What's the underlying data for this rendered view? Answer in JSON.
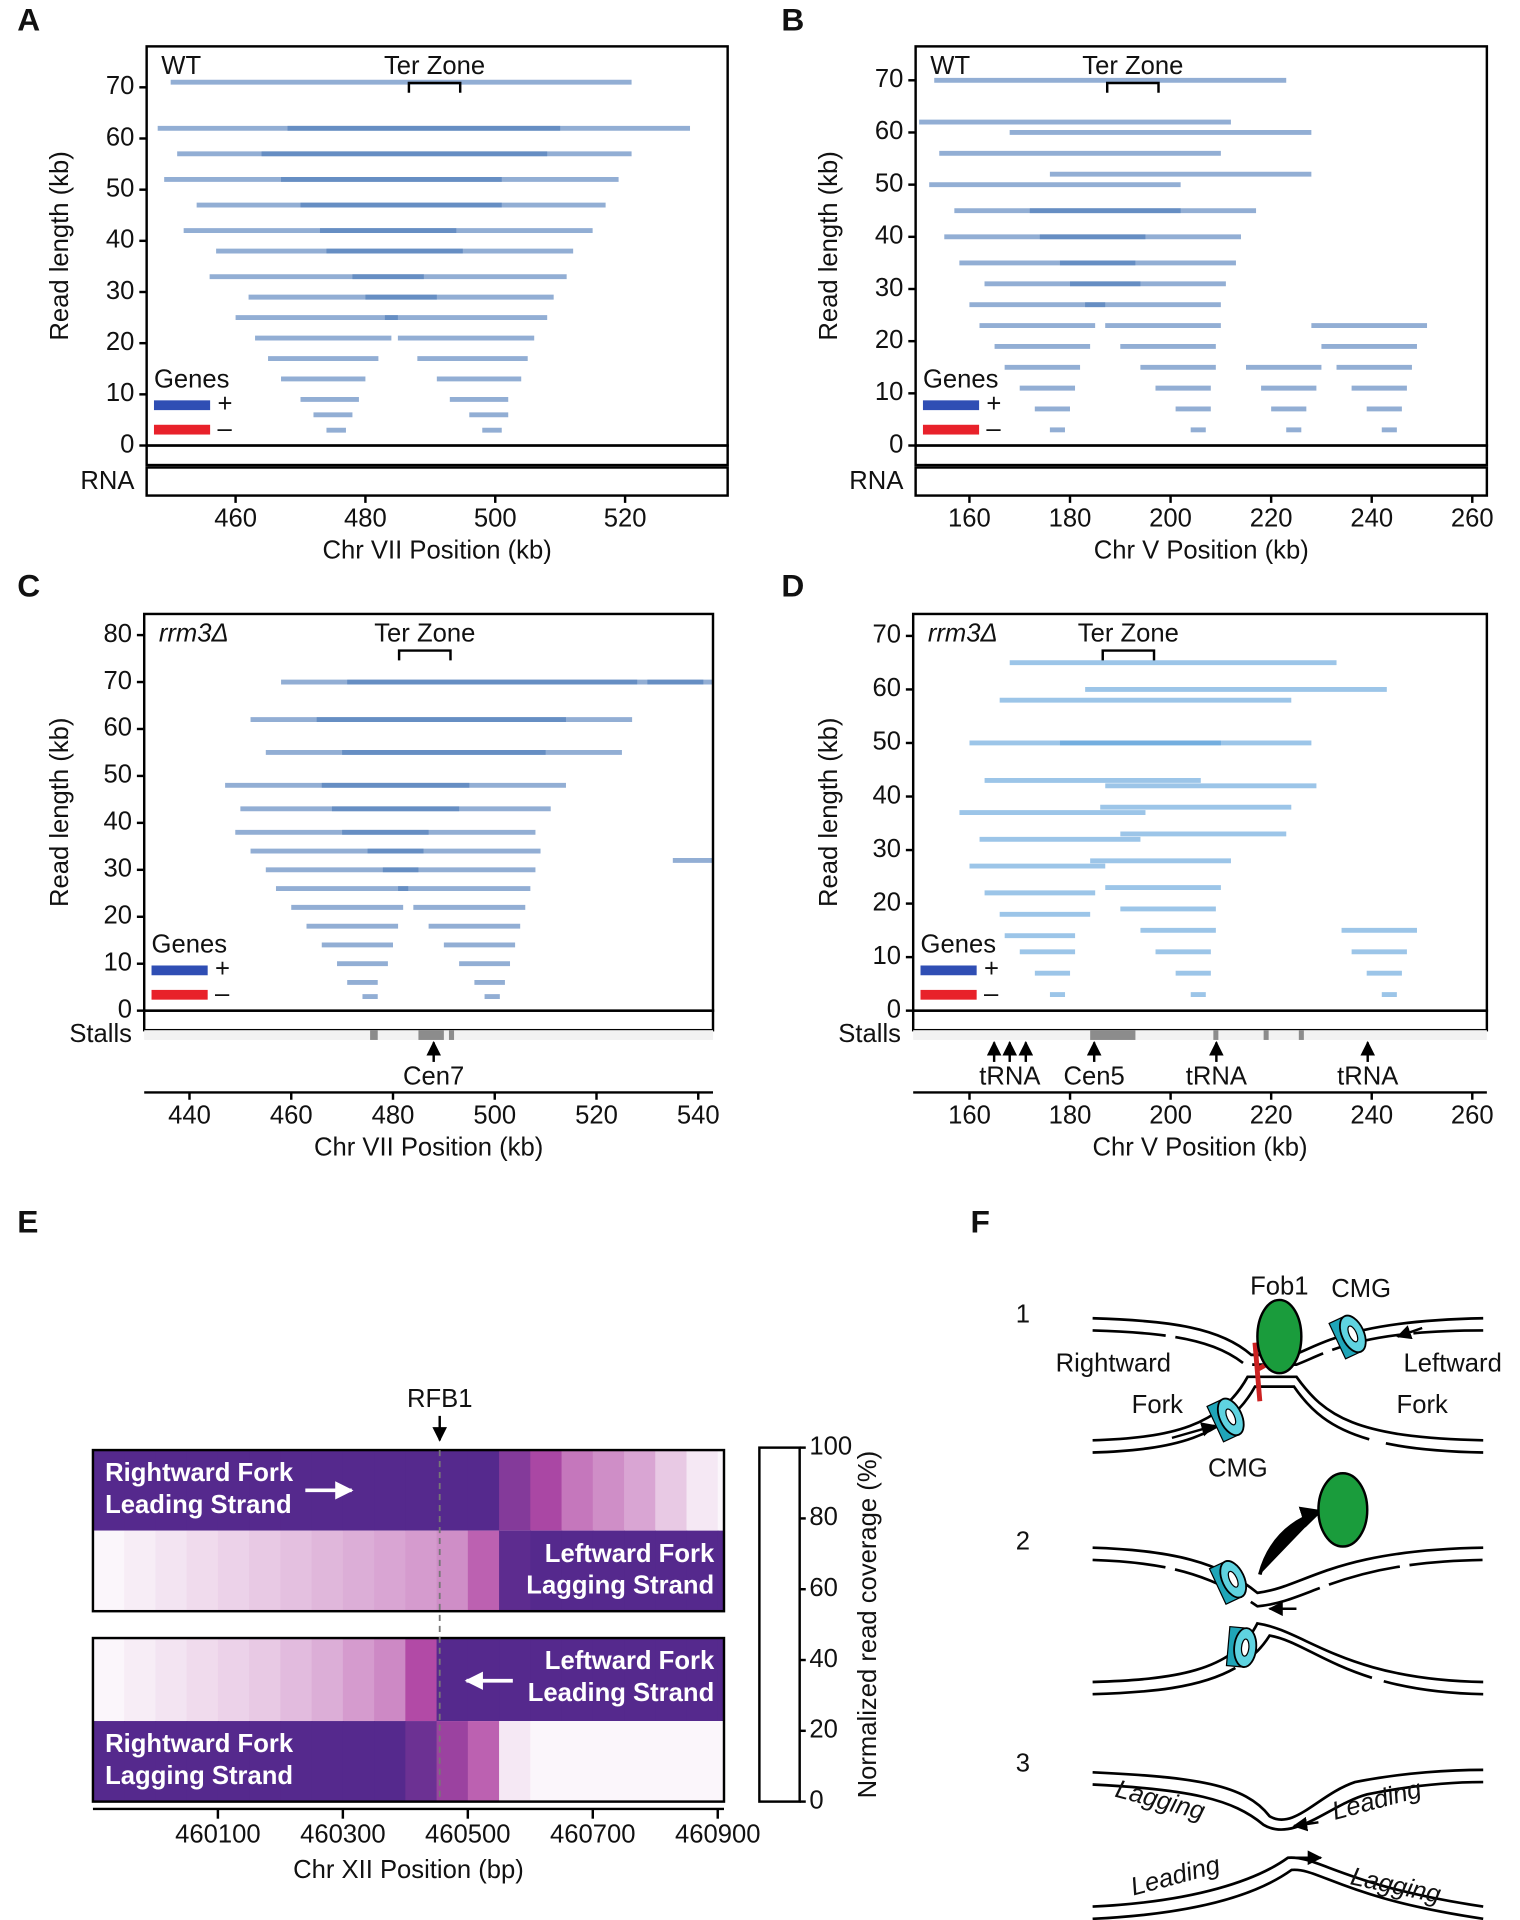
{
  "panel_labels": [
    "A",
    "B",
    "C",
    "D",
    "E",
    "F"
  ],
  "chart_data": [
    {
      "type": "pileup",
      "label": "WT",
      "label_italic": false,
      "annotation": "Ter Zone",
      "ter_zone": [
        486.7,
        494.6
      ],
      "xlabel": "Chr VII Position (kb)",
      "ylabel": "Read length  (kb)",
      "xlim": [
        446.3,
        535.8
      ],
      "xticks": [
        460,
        480,
        500,
        520
      ],
      "ylim": [
        0,
        78
      ],
      "yticks": [
        0,
        10,
        20,
        30,
        40,
        50,
        60,
        70
      ],
      "color": "#4a78b8",
      "legend_title": "Genes",
      "legend": [
        {
          "name": "+",
          "color": "#2f4eb4"
        },
        {
          "name": "–",
          "color": "#e8212a"
        }
      ],
      "track_label": "RNA",
      "track_label_color": "#4caf50",
      "reads": {
        "start": [
          474,
          472,
          470,
          467,
          465,
          463,
          460,
          462,
          456,
          457,
          452,
          454,
          449,
          451,
          448,
          450,
          498,
          496,
          493,
          491,
          488,
          485,
          483,
          480,
          478,
          474,
          473,
          470,
          467,
          464,
          468
        ],
        "length": [
          3,
          6,
          9,
          13,
          17,
          21,
          25,
          29,
          33,
          38,
          42,
          47,
          52,
          57,
          62,
          71,
          3,
          6,
          9,
          13,
          17,
          21,
          25,
          29,
          33,
          38,
          42,
          47,
          52,
          57,
          62
        ]
      }
    },
    {
      "type": "pileup",
      "label": "WT",
      "label_italic": false,
      "annotation": "Ter Zone",
      "ter_zone": [
        187.4,
        197.6
      ],
      "xlabel": "Chr V Position  (kb)",
      "ylabel": "Read length  (kb)",
      "xlim": [
        149.3,
        262.9
      ],
      "xticks": [
        160,
        180,
        200,
        220,
        240,
        260
      ],
      "ylim": [
        0,
        76.5
      ],
      "yticks": [
        0,
        10,
        20,
        30,
        40,
        50,
        60,
        70
      ],
      "color": "#4a78b8",
      "legend_title": "Genes",
      "legend": [
        {
          "name": "+",
          "color": "#2f4eb4"
        },
        {
          "name": "–",
          "color": "#e8212a"
        }
      ],
      "track_label": "RNA",
      "track_label_color": "#4caf50",
      "reads": {
        "start": [
          176,
          173,
          170,
          167,
          165,
          162,
          160,
          163,
          158,
          155,
          157,
          152,
          154,
          150,
          153,
          204,
          201,
          197,
          194,
          190,
          187,
          183,
          180,
          178,
          174,
          172,
          176,
          168,
          223,
          220,
          218,
          215,
          242,
          239,
          236,
          233,
          230,
          228
        ],
        "length": [
          3,
          7,
          11,
          15,
          19,
          23,
          27,
          31,
          35,
          40,
          45,
          50,
          56,
          62,
          70,
          3,
          7,
          11,
          15,
          19,
          23,
          27,
          31,
          35,
          40,
          45,
          52,
          60,
          3,
          7,
          11,
          15,
          3,
          7,
          11,
          15,
          19,
          23
        ]
      }
    },
    {
      "type": "pileup",
      "label": "rrm3Δ",
      "label_italic": true,
      "annotation": "Ter Zone",
      "ter_zone": [
        481.2,
        491.3
      ],
      "xlabel": "Chr VII Position  (kb)",
      "ylabel": "Read length  (kb)",
      "xlim": [
        431.1,
        542.9
      ],
      "xticks": [
        440,
        460,
        480,
        500,
        520,
        540
      ],
      "ylim": [
        0,
        84.5
      ],
      "yticks": [
        0,
        10,
        20,
        30,
        40,
        50,
        60,
        70,
        80
      ],
      "color": "#4a78b8",
      "legend_title": "Genes",
      "legend": [
        {
          "name": "+",
          "color": "#2f4eb4"
        },
        {
          "name": "–",
          "color": "#e8212a"
        }
      ],
      "track_label": "Stalls",
      "track_label_color": "#111111",
      "stalls": [
        [
          475.5,
          477
        ],
        [
          485,
          490
        ],
        [
          491,
          492
        ]
      ],
      "marks": [
        {
          "label": "Cen7",
          "x": [
            488.0
          ]
        }
      ],
      "reads": {
        "start": [
          474,
          471,
          469,
          466,
          463,
          460,
          457,
          455,
          452,
          449,
          450,
          447,
          455,
          452,
          458,
          498,
          496,
          493,
          490,
          487,
          484,
          481,
          478,
          475,
          470,
          468,
          466,
          470,
          465,
          471,
          535,
          530
        ],
        "length": [
          3,
          6,
          10,
          14,
          18,
          22,
          26,
          30,
          34,
          38,
          43,
          48,
          55,
          62,
          70,
          3,
          6,
          10,
          14,
          18,
          22,
          26,
          30,
          34,
          38,
          43,
          48,
          55,
          62,
          70,
          32,
          70
        ]
      }
    },
    {
      "type": "pileup",
      "label": "rrm3Δ",
      "label_italic": true,
      "annotation": "Ter Zone",
      "ter_zone": [
        186.5,
        196.7
      ],
      "xlabel": "Chr V Position  (kb)",
      "ylabel": "Read length  (kb)",
      "xlim": [
        148.8,
        262.9
      ],
      "xticks": [
        160,
        180,
        200,
        220,
        240,
        260
      ],
      "ylim": [
        0,
        74.1
      ],
      "yticks": [
        0,
        10,
        20,
        30,
        40,
        50,
        60,
        70
      ],
      "color": "#5a9ed8",
      "legend_title": "Genes",
      "legend": [
        {
          "name": "+",
          "color": "#2f4eb4"
        },
        {
          "name": "–",
          "color": "#e8212a"
        }
      ],
      "track_label": "Stalls",
      "track_label_color": "#111111",
      "stalls": [
        [
          184,
          193
        ],
        [
          208.5,
          209.5
        ],
        [
          218.5,
          219.5
        ],
        [
          225.5,
          226.5
        ]
      ],
      "marks": [
        {
          "label": "tRNA",
          "x": [
            164.9,
            168.0,
            171.2
          ]
        },
        {
          "label": "Cen5",
          "x": [
            184.8
          ]
        },
        {
          "label": "tRNA",
          "x": [
            209.1
          ]
        },
        {
          "label": "tRNA",
          "x": [
            239.2
          ]
        }
      ],
      "reads": {
        "start": [
          176,
          173,
          170,
          167,
          166,
          163,
          160,
          162,
          158,
          163,
          160,
          166,
          168,
          204,
          201,
          197,
          194,
          190,
          187,
          184,
          190,
          186,
          187,
          178,
          183,
          242,
          239,
          236,
          234
        ],
        "length": [
          3,
          7,
          11,
          14,
          18,
          22,
          27,
          32,
          37,
          43,
          50,
          58,
          65,
          3,
          7,
          11,
          15,
          19,
          23,
          28,
          33,
          38,
          42,
          50,
          60,
          3,
          7,
          11,
          15
        ]
      }
    },
    {
      "type": "heatmap",
      "annotation": "RFB1",
      "rfb": 460455,
      "xlabel": "Chr XII Position  (bp)",
      "xlim": [
        459900,
        460910
      ],
      "xticks": [
        460100,
        460300,
        460500,
        460700,
        460900
      ],
      "x": [
        459900,
        459950,
        460000,
        460050,
        460100,
        460150,
        460200,
        460250,
        460300,
        460350,
        460400,
        460450,
        460500,
        460550,
        460600,
        460650,
        460700,
        460750,
        460800,
        460850,
        460900
      ],
      "rows": [
        {
          "name": [
            "Rightward Fork",
            "Leading Strand"
          ],
          "values": [
            100,
            100,
            100,
            100,
            100,
            100,
            100,
            100,
            100,
            100,
            100,
            100,
            100,
            70,
            45,
            30,
            25,
            20,
            12,
            5,
            2
          ]
        },
        {
          "name": [
            "Leftward Fork",
            "Lagging Strand"
          ],
          "values": [
            2,
            4,
            6,
            8,
            10,
            12,
            14,
            16,
            18,
            20,
            22,
            25,
            35,
            95,
            100,
            100,
            100,
            100,
            100,
            100,
            100
          ]
        },
        {
          "name": [
            "Leftward Fork",
            "Leading Strand"
          ],
          "values": [
            2,
            4,
            6,
            8,
            10,
            12,
            15,
            18,
            22,
            26,
            40,
            100,
            100,
            100,
            100,
            100,
            100,
            100,
            100,
            100,
            100
          ]
        },
        {
          "name": [
            "Rightward Fork",
            "Lagging Strand"
          ],
          "values": [
            100,
            100,
            100,
            100,
            100,
            100,
            100,
            100,
            100,
            100,
            85,
            55,
            35,
            5,
            2,
            2,
            2,
            2,
            2,
            2,
            2
          ]
        }
      ],
      "clabel": "Normalized read coverage (%)",
      "clim": [
        0,
        100
      ],
      "cticks": [
        0,
        20,
        40,
        60,
        80,
        100
      ],
      "colorscale": [
        [
          0,
          "#ffffff"
        ],
        [
          40,
          "#b24aa6"
        ],
        [
          100,
          "#55298d"
        ]
      ]
    }
  ],
  "diagram": {
    "steps": [
      "1",
      "2",
      "3"
    ],
    "fob1": "Fob1",
    "cmg_top": "CMG",
    "cmg_bottom": "CMG",
    "rightward": [
      "Rightward",
      "Fork"
    ],
    "leftward": [
      "Leftward",
      "Fork"
    ],
    "step3": [
      "Lagging",
      "Leading",
      "Leading",
      "Lagging"
    ]
  }
}
